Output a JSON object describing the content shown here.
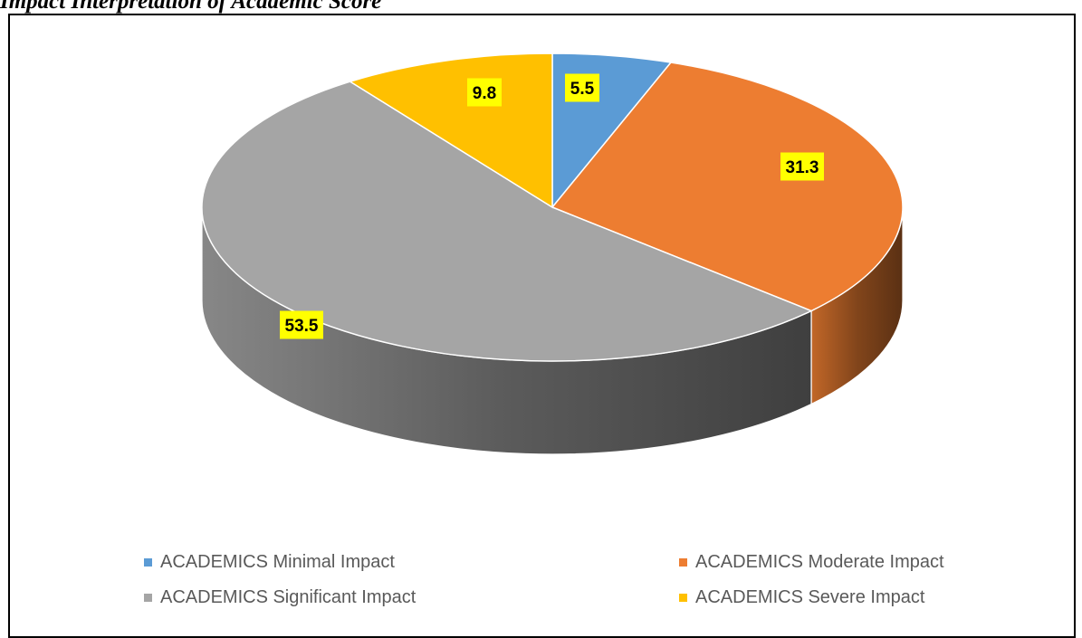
{
  "page": {
    "title": "Impact Interpretation of Academic Score"
  },
  "chart_data": {
    "type": "pie",
    "title": "",
    "values": [
      5.5,
      31.3,
      53.5,
      9.8
    ],
    "labels": [
      "ACADEMICS Minimal Impact",
      "ACADEMICS Moderate Impact",
      "ACADEMICS Significant Impact",
      "ACADEMICS Severe Impact"
    ],
    "data_labels": [
      "5.5",
      "31.3",
      "53.5",
      "9.8"
    ],
    "colors": [
      "#5B9BD5",
      "#ED7D31",
      "#A5A5A5",
      "#FFC000"
    ],
    "label_background": "#FFFF00",
    "style": "3d",
    "legend": "bottom",
    "grid": false
  }
}
